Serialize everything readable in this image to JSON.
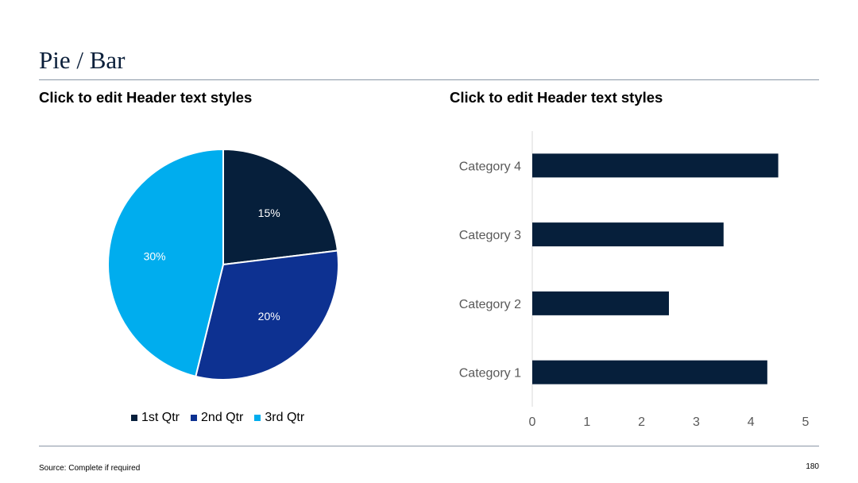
{
  "slide": {
    "title": "Pie / Bar",
    "left_header": "Click to edit Header text styles",
    "right_header": "Click to edit Header text styles",
    "source": "Source: Complete if required",
    "page_number": "180"
  },
  "chart_data": [
    {
      "type": "pie",
      "title": "",
      "slices": [
        {
          "name": "1st Qtr",
          "value": 15,
          "label": "15%",
          "color": "#061f3b"
        },
        {
          "name": "2nd Qtr",
          "value": 20,
          "label": "20%",
          "color": "#0d3191"
        },
        {
          "name": "3rd Qtr",
          "value": 30,
          "label": "30%",
          "color": "#00adee"
        }
      ],
      "legend": "bottom"
    },
    {
      "type": "bar",
      "orientation": "horizontal",
      "title": "",
      "categories": [
        "Category 1",
        "Category 2",
        "Category 3",
        "Category 4"
      ],
      "values": [
        4.3,
        2.5,
        3.5,
        4.5
      ],
      "xlim": [
        0,
        5
      ],
      "xticks": [
        "0",
        "1",
        "2",
        "3",
        "4",
        "5"
      ],
      "color": "#061f3b",
      "grid": false
    }
  ]
}
